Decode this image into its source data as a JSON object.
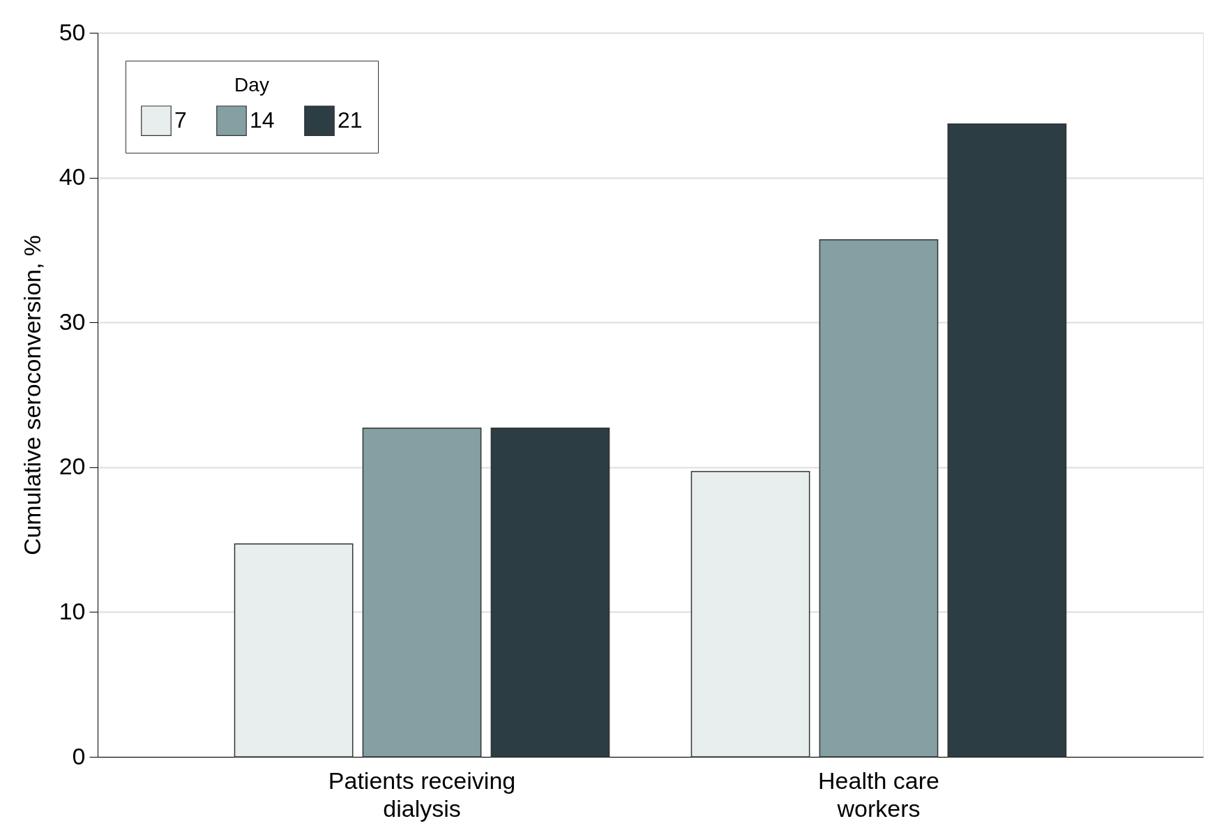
{
  "chart_data": {
    "type": "bar",
    "ylabel": "Cumulative seroconversion, %",
    "legend_title": "Day",
    "categories": [
      "Patients receiving dialysis",
      "Health care workers"
    ],
    "series": [
      {
        "name": "7",
        "color": "#e8eeee",
        "values": [
          14.7,
          19.7
        ]
      },
      {
        "name": "14",
        "color": "#84a0a3",
        "values": [
          22.7,
          35.7
        ]
      },
      {
        "name": "21",
        "color": "#2c3e44",
        "values": [
          22.7,
          43.7
        ]
      }
    ],
    "ylim": [
      0,
      50
    ],
    "yticks": [
      0,
      10,
      20,
      30,
      40,
      50
    ],
    "grid": "y",
    "legend": "top left"
  }
}
